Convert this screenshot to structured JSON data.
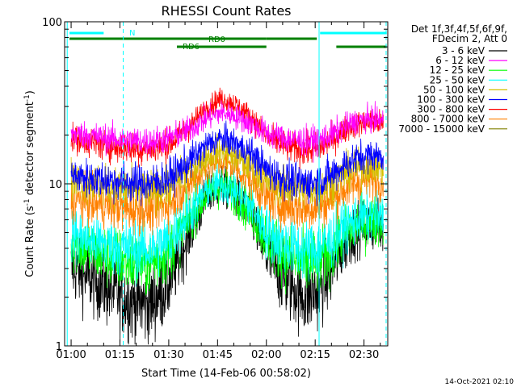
{
  "chart_data": {
    "type": "line",
    "title": "RHESSI Count Rates",
    "xlabel": "Start Time (14-Feb-06 00:58:02)",
    "ylabel_main": "Count Rate (s",
    "ylabel_sup": "-1",
    "ylabel_rest": " detector segment",
    "ylabel_sup2": "-1",
    "ylabel_end": ")",
    "yscale": "log",
    "ylim": [
      1,
      100
    ],
    "xlim_minutes": [
      58.0,
      157.3
    ],
    "xticks": [
      {
        "label": "01:00",
        "minutes": 60
      },
      {
        "label": "01:15",
        "minutes": 75
      },
      {
        "label": "01:30",
        "minutes": 90
      },
      {
        "label": "01:45",
        "minutes": 105
      },
      {
        "label": "02:00",
        "minutes": 120
      },
      {
        "label": "02:15",
        "minutes": 135
      },
      {
        "label": "02:30",
        "minutes": 150
      }
    ],
    "yticks": [
      {
        "label": "1",
        "value": 1
      },
      {
        "label": "10",
        "value": 10
      },
      {
        "label": "100",
        "value": 100
      }
    ],
    "legend_header": [
      "Det 1f,3f,4f,5f,6f,9f,",
      "FDecim 2, Att 0"
    ],
    "legend_position": "right",
    "timestamp": "14-Oct-2021 02:10",
    "series": [
      {
        "name": "3 - 6 keV",
        "color": "#000000",
        "x": [
          60,
          66,
          72,
          78,
          84,
          90,
          96,
          102,
          106,
          110,
          116,
          120,
          126,
          132,
          136,
          140,
          144,
          148,
          152,
          156
        ],
        "y": [
          3.0,
          2.6,
          2.2,
          1.9,
          1.8,
          2.4,
          4.8,
          8.5,
          9.8,
          8.8,
          6.0,
          3.6,
          2.5,
          2.0,
          2.2,
          2.9,
          4.2,
          5.3,
          5.6,
          5.3
        ]
      },
      {
        "name": "6 - 12 keV",
        "color": "#ff00ff",
        "x": [
          60,
          66,
          72,
          78,
          84,
          90,
          96,
          102,
          106,
          110,
          116,
          120,
          126,
          132,
          136,
          140,
          144,
          148,
          152,
          156
        ],
        "y": [
          20.5,
          19.8,
          19.0,
          18.5,
          18.2,
          19.0,
          21.5,
          25.5,
          27.5,
          26.5,
          23.0,
          20.5,
          19.0,
          18.3,
          18.6,
          20.0,
          22.5,
          24.5,
          25.0,
          24.5
        ]
      },
      {
        "name": "12 - 25 keV",
        "color": "#00ff00",
        "x": [
          60,
          66,
          72,
          78,
          84,
          90,
          96,
          102,
          106,
          110,
          116,
          120,
          126,
          132,
          136,
          140,
          144,
          148,
          152,
          156
        ],
        "y": [
          4.3,
          3.9,
          3.5,
          3.3,
          3.2,
          3.8,
          6.0,
          8.8,
          9.6,
          8.8,
          6.5,
          4.6,
          3.6,
          3.2,
          3.3,
          3.8,
          4.8,
          5.6,
          5.9,
          5.7
        ]
      },
      {
        "name": "25 - 50 keV",
        "color": "#00ffff",
        "x": [
          60,
          66,
          72,
          78,
          84,
          90,
          96,
          102,
          106,
          110,
          116,
          120,
          126,
          132,
          136,
          140,
          144,
          148,
          152,
          156
        ],
        "y": [
          4.9,
          4.5,
          4.2,
          4.0,
          3.9,
          4.4,
          6.5,
          9.3,
          10.0,
          9.2,
          7.0,
          5.1,
          4.2,
          3.9,
          4.0,
          4.5,
          5.4,
          6.1,
          6.4,
          6.2
        ]
      },
      {
        "name": "50 - 100 keV",
        "color": "#d4c000",
        "x": [
          60,
          66,
          72,
          78,
          84,
          90,
          96,
          102,
          106,
          110,
          116,
          120,
          126,
          132,
          136,
          140,
          144,
          148,
          152,
          156
        ],
        "y": [
          10.5,
          10.0,
          9.5,
          9.2,
          9.0,
          9.6,
          12.0,
          15.0,
          16.0,
          15.0,
          12.5,
          10.5,
          9.5,
          9.1,
          9.3,
          10.2,
          11.5,
          12.5,
          12.8,
          12.5
        ]
      },
      {
        "name": "100 - 300 keV",
        "color": "#0000ff",
        "x": [
          60,
          66,
          72,
          78,
          84,
          90,
          96,
          102,
          106,
          110,
          116,
          120,
          126,
          132,
          136,
          140,
          144,
          148,
          152,
          156
        ],
        "y": [
          11.2,
          10.8,
          10.5,
          10.2,
          10.0,
          10.8,
          13.5,
          17.5,
          19.0,
          18.0,
          15.0,
          12.2,
          10.6,
          10.1,
          10.3,
          11.3,
          13.0,
          14.5,
          15.0,
          14.8
        ]
      },
      {
        "name": "300 - 800 keV",
        "color": "#ff0000",
        "x": [
          60,
          66,
          72,
          78,
          84,
          90,
          96,
          102,
          106,
          110,
          116,
          120,
          126,
          132,
          136,
          140,
          144,
          148,
          152,
          156
        ],
        "y": [
          19.0,
          18.0,
          17.0,
          16.5,
          16.3,
          17.5,
          22.0,
          30.0,
          33.5,
          31.5,
          25.0,
          19.5,
          17.0,
          16.0,
          16.5,
          18.5,
          21.5,
          23.5,
          24.0,
          23.5
        ]
      },
      {
        "name": "800 - 7000 keV",
        "color": "#ff8000",
        "x": [
          60,
          66,
          72,
          78,
          84,
          90,
          96,
          102,
          106,
          110,
          116,
          120,
          126,
          132,
          136,
          140,
          144,
          148,
          152,
          156
        ],
        "y": [
          8.0,
          7.6,
          7.3,
          7.0,
          6.9,
          7.5,
          9.8,
          12.8,
          13.8,
          12.8,
          10.2,
          8.2,
          7.3,
          7.0,
          7.2,
          8.0,
          9.2,
          10.2,
          10.6,
          10.4
        ]
      },
      {
        "name": "7000 - 15000 keV",
        "color": "#808000",
        "x": [],
        "y": []
      }
    ],
    "annotations": [
      {
        "label": "N",
        "color": "#00ffff",
        "segments": [
          [
            59.5,
            70.0
          ],
          [
            136.5,
            157.0
          ]
        ]
      },
      {
        "label": "RD0",
        "color": "#008000",
        "segments": [
          [
            59.5,
            120.0
          ],
          [
            120.0,
            135.5
          ]
        ]
      },
      {
        "label": "RD6",
        "color": "#008000",
        "segments": [
          [
            92.5,
            120.0
          ],
          [
            141.5,
            157.0
          ]
        ]
      }
    ],
    "vlines": [
      {
        "minutes": 58.8,
        "color": "#00ffff",
        "style": "solid"
      },
      {
        "minutes": 76.0,
        "color": "#00ffff",
        "style": "dashed"
      },
      {
        "minutes": 136.2,
        "color": "#00ffff",
        "style": "solid"
      },
      {
        "minutes": 156.8,
        "color": "#00ffff",
        "style": "dashed"
      }
    ]
  }
}
